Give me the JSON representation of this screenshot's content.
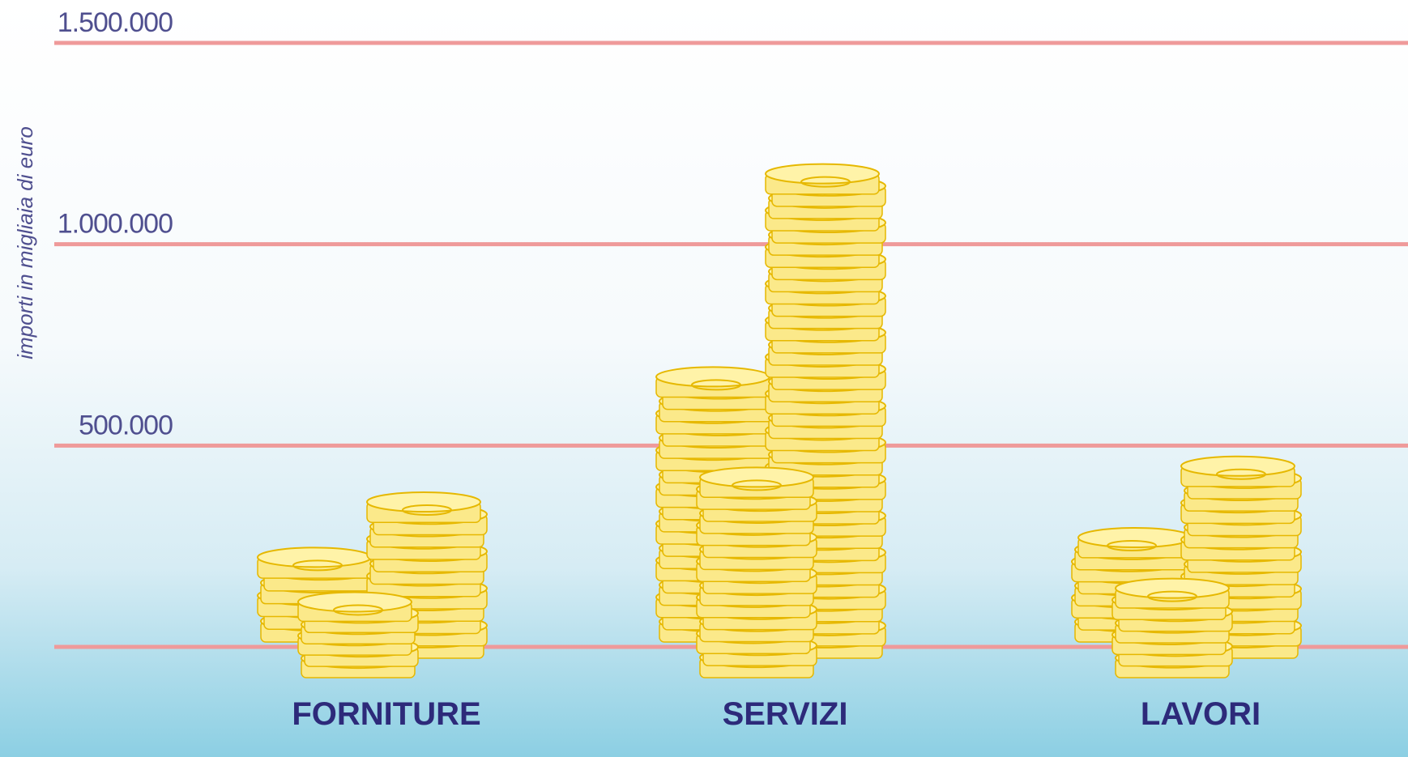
{
  "chart_data": {
    "type": "coin-bar",
    "y_label": "importi in migliaia di euro",
    "categories": [
      "FORNITURE",
      "SERVIZI",
      "LAVORI"
    ],
    "values": [
      368000,
      1183000,
      457000
    ],
    "color": "#f7d84a",
    "ylim": [
      0,
      1500000
    ],
    "yticks": [
      {
        "value": 500000,
        "label": "500.000"
      },
      {
        "value": 1000000,
        "label": "1.000.000"
      },
      {
        "value": 1500000,
        "label": "1.500.000"
      }
    ],
    "grid": true
  }
}
